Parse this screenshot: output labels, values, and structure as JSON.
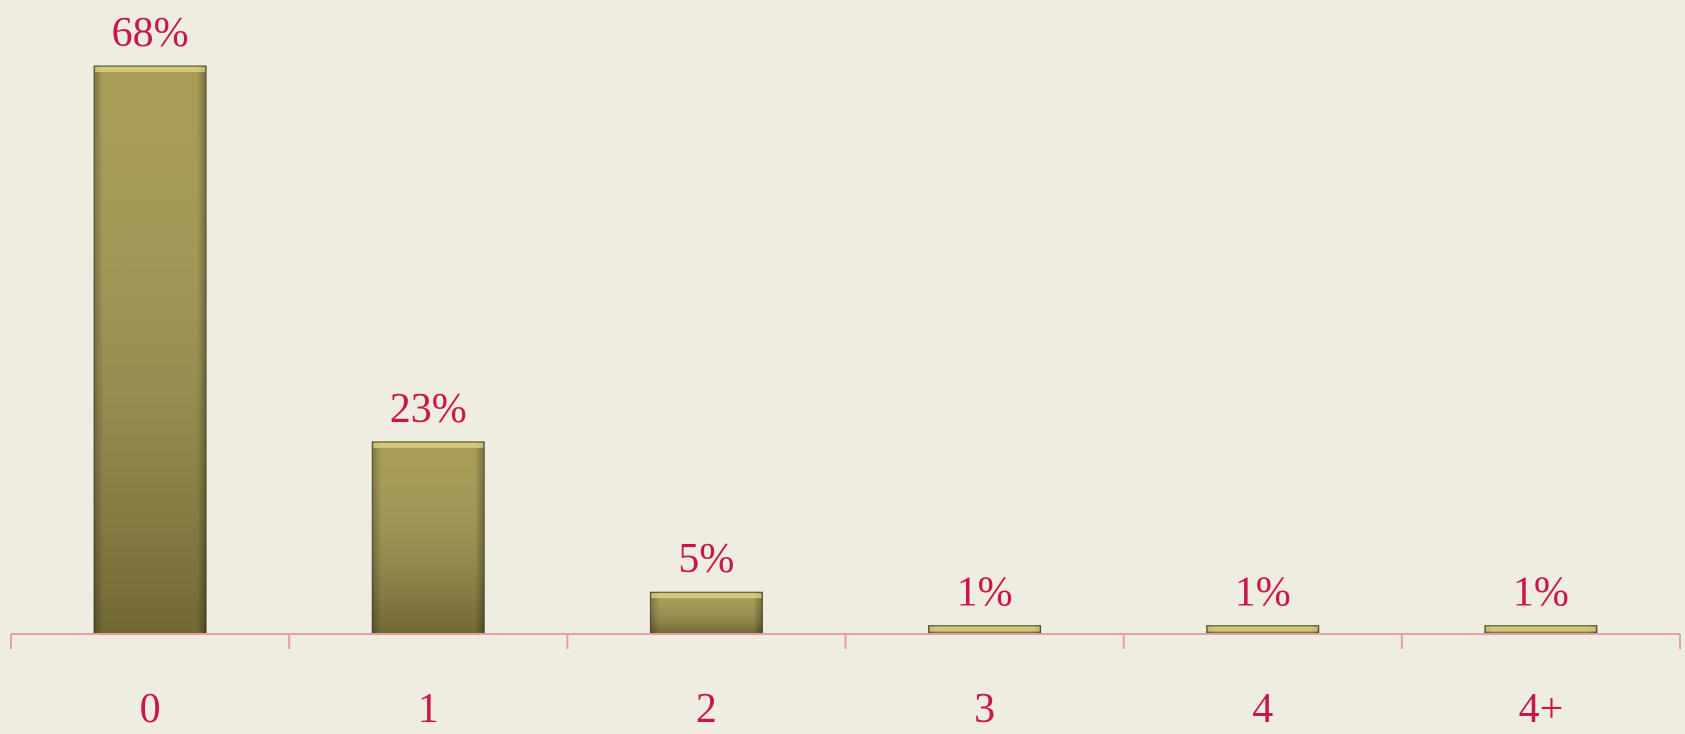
{
  "chart_data": {
    "type": "bar",
    "categories": [
      "0",
      "1",
      "2",
      "3",
      "4",
      "4+"
    ],
    "values": [
      68,
      23,
      5,
      1,
      1,
      1
    ],
    "value_labels": [
      "68%",
      "23%",
      "5%",
      "1%",
      "1%",
      "1%"
    ],
    "color": "#a09448"
  }
}
